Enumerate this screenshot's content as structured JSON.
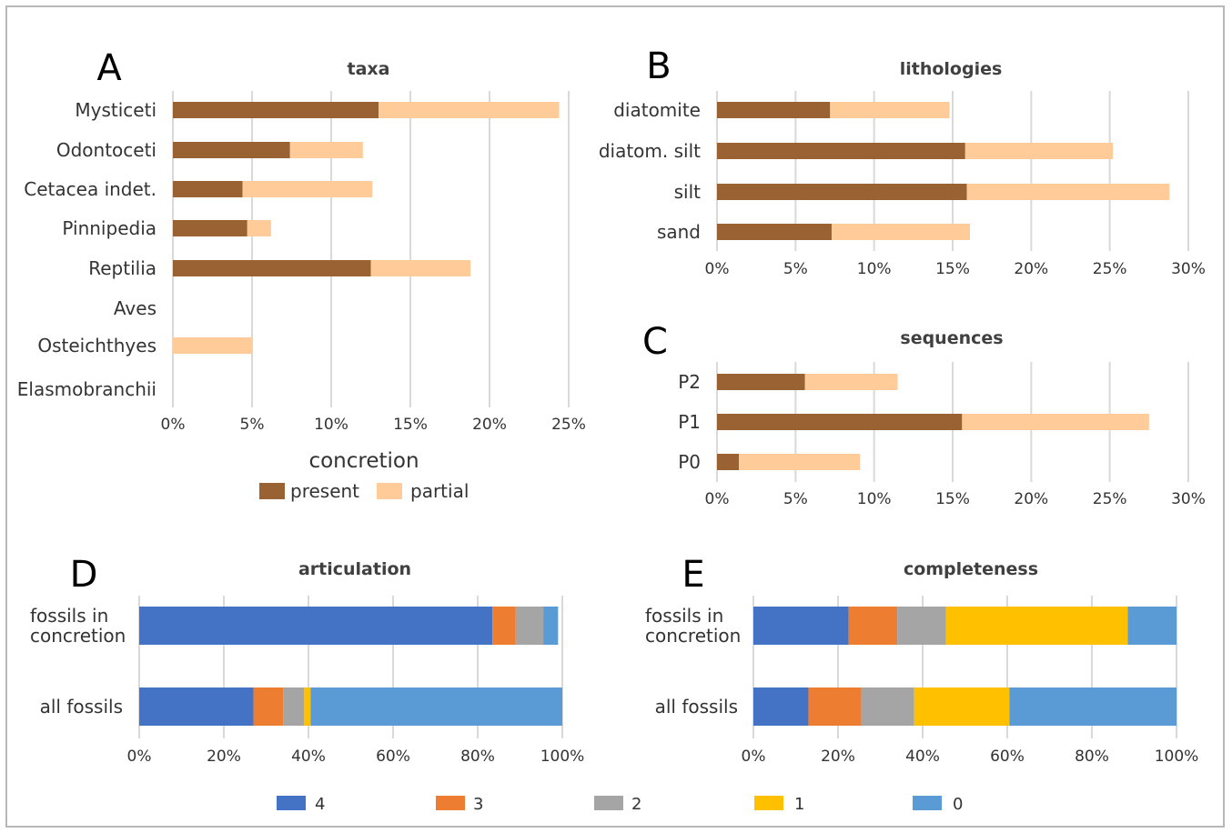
{
  "colors": {
    "present": "#9A6233",
    "partial": "#FFCC99",
    "score_4": "#4472C4",
    "score_3": "#ED7D31",
    "score_2": "#A5A5A5",
    "score_1": "#FFC000",
    "score_0": "#5B9BD5",
    "grid": "#d9d9d9"
  },
  "legend_top": {
    "title": "concretion",
    "items": [
      "present",
      "partial"
    ]
  },
  "legend_bottom": {
    "items": [
      "4",
      "3",
      "2",
      "1",
      "0"
    ]
  },
  "chart_data": [
    {
      "panel": "A",
      "type": "bar",
      "orientation": "horizontal",
      "stacked": true,
      "title": "taxa",
      "categories": [
        "Mysticeti",
        "Odontoceti",
        "Cetacea indet.",
        "Pinnipedia",
        "Reptilia",
        "Aves",
        "Osteichthyes",
        "Elasmobranchii"
      ],
      "series": [
        {
          "name": "present",
          "values": [
            13,
            7.4,
            4.4,
            4.7,
            12.5,
            0,
            0,
            0
          ]
        },
        {
          "name": "partial",
          "values": [
            11.4,
            4.6,
            8.2,
            1.5,
            6.3,
            0,
            5.0,
            0
          ]
        }
      ],
      "xlim": [
        0,
        25
      ],
      "xticks": [
        "0%",
        "5%",
        "10%",
        "15%",
        "20%",
        "25%"
      ],
      "grid": true,
      "legend": "bottom"
    },
    {
      "panel": "B",
      "type": "bar",
      "orientation": "horizontal",
      "stacked": true,
      "title": "lithologies",
      "categories": [
        "diatomite",
        "diatom. silt",
        "silt",
        "sand"
      ],
      "series": [
        {
          "name": "present",
          "values": [
            7.2,
            15.8,
            15.9,
            7.3
          ]
        },
        {
          "name": "partial",
          "values": [
            7.6,
            9.4,
            12.9,
            8.8
          ]
        }
      ],
      "xlim": [
        0,
        30
      ],
      "xticks": [
        "0%",
        "5%",
        "10%",
        "15%",
        "20%",
        "25%",
        "30%"
      ],
      "grid": true
    },
    {
      "panel": "C",
      "type": "bar",
      "orientation": "horizontal",
      "stacked": true,
      "title": "sequences",
      "categories": [
        "P2",
        "P1",
        "P0"
      ],
      "series": [
        {
          "name": "present",
          "values": [
            5.6,
            15.6,
            1.4
          ]
        },
        {
          "name": "partial",
          "values": [
            5.9,
            11.9,
            7.7
          ]
        }
      ],
      "xlim": [
        0,
        30
      ],
      "xticks": [
        "0%",
        "5%",
        "10%",
        "15%",
        "20%",
        "25%",
        "30%"
      ],
      "grid": true
    },
    {
      "panel": "D",
      "type": "bar",
      "orientation": "horizontal",
      "stacked": true,
      "title": "articulation",
      "categories": [
        "fossils in concretion",
        "all fossils"
      ],
      "category_lines": [
        [
          "fossils in",
          "concretion"
        ],
        [
          "all fossils"
        ]
      ],
      "series": [
        {
          "name": "4",
          "values": [
            83.5,
            27
          ]
        },
        {
          "name": "3",
          "values": [
            5.5,
            7
          ]
        },
        {
          "name": "2",
          "values": [
            6.5,
            5
          ]
        },
        {
          "name": "1",
          "values": [
            0,
            1.5
          ]
        },
        {
          "name": "0",
          "values": [
            3.5,
            59.5
          ]
        }
      ],
      "xlim": [
        0,
        100
      ],
      "xticks": [
        "0%",
        "20%",
        "40%",
        "60%",
        "80%",
        "100%"
      ],
      "grid": true,
      "legend": "bottom"
    },
    {
      "panel": "E",
      "type": "bar",
      "orientation": "horizontal",
      "stacked": true,
      "title": "completeness",
      "categories": [
        "fossils in concretion",
        "all fossils"
      ],
      "category_lines": [
        [
          "fossils in",
          "concretion"
        ],
        [
          "all fossils"
        ]
      ],
      "series": [
        {
          "name": "4",
          "values": [
            22.5,
            13
          ]
        },
        {
          "name": "3",
          "values": [
            11.5,
            12.5
          ]
        },
        {
          "name": "2",
          "values": [
            11.5,
            12.5
          ]
        },
        {
          "name": "1",
          "values": [
            43,
            22.5
          ]
        },
        {
          "name": "0",
          "values": [
            11.5,
            39.5
          ]
        }
      ],
      "xlim": [
        0,
        100
      ],
      "xticks": [
        "0%",
        "20%",
        "40%",
        "60%",
        "80%",
        "100%"
      ],
      "grid": true,
      "legend": "bottom"
    }
  ]
}
